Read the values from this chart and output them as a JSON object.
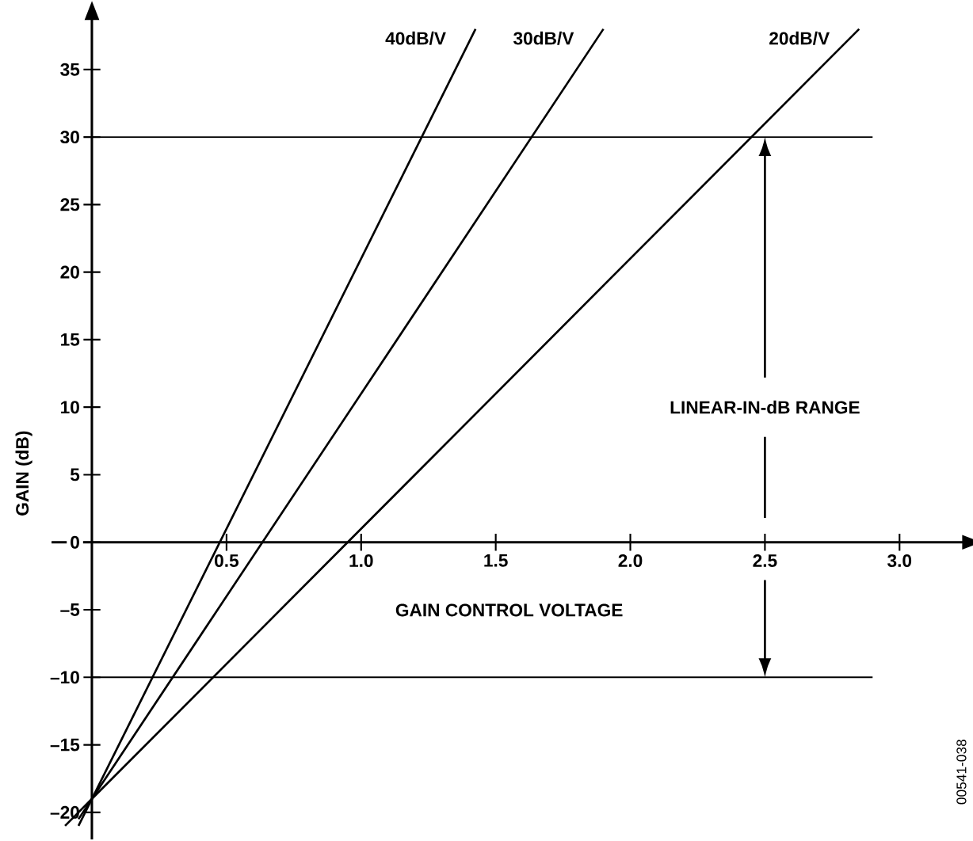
{
  "chart_data": {
    "type": "line",
    "xlabel": "GAIN CONTROL VOLTAGE",
    "ylabel": "GAIN (dB)",
    "series": [
      {
        "name": "40dB/V",
        "color": "#000000",
        "x": [
          -0.05,
          0,
          1.425
        ],
        "values": [
          -21,
          -19,
          38
        ]
      },
      {
        "name": "30dB/V",
        "color": "#000000",
        "x": [
          -0.05,
          0,
          1.9
        ],
        "values": [
          -20.5,
          -19,
          38
        ]
      },
      {
        "name": "20dB/V",
        "color": "#000000",
        "x": [
          -0.1,
          0,
          2.85
        ],
        "values": [
          -21,
          -19,
          38
        ]
      }
    ],
    "xlim": [
      -0.15,
      3.28
    ],
    "ylim": [
      -22,
      39.6
    ],
    "xticks": [
      0.5,
      {
        "value": 1,
        "label": "1.0"
      },
      1.5,
      {
        "value": 2,
        "label": "2.0"
      },
      2.5,
      {
        "value": 3,
        "label": "3.0"
      }
    ],
    "yticks": [
      {
        "value": -20,
        "label": "–20"
      },
      {
        "value": -15,
        "label": "–15"
      },
      {
        "value": -10,
        "label": "–10"
      },
      {
        "value": -5,
        "label": "–5"
      },
      0,
      5,
      10,
      15,
      20,
      25,
      30,
      35
    ],
    "ref_lines": [
      {
        "axis": "y",
        "value": 30,
        "color": "#000000"
      },
      {
        "axis": "y",
        "value": -10,
        "color": "#000000"
      }
    ],
    "annotations": [
      "LINEAR-IN-dB RANGE",
      "00541-038"
    ],
    "grid": false,
    "legend": false,
    "marker": "none",
    "line_style": "solid"
  }
}
